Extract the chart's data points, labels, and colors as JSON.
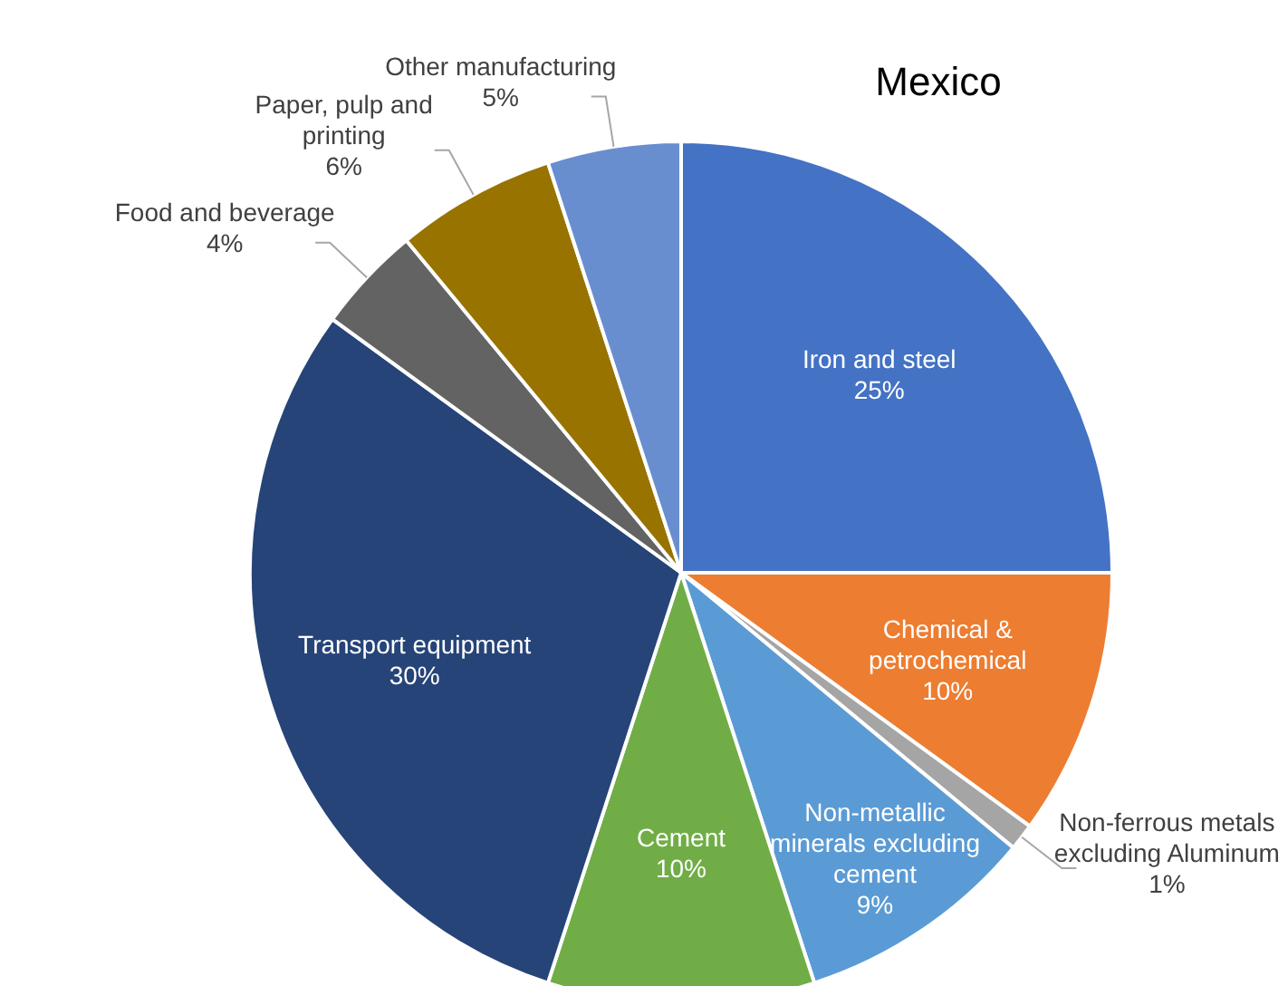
{
  "chart_data": {
    "type": "pie",
    "title": "Mexico",
    "categories": [
      "Iron and steel",
      "Chemical & petrochemical",
      "Non-ferrous metals excluding Aluminum",
      "Non-metallic minerals excluding cement",
      "Cement",
      "Transport equipment",
      "Food and beverage",
      "Paper, pulp and printing",
      "Other manufacturing"
    ],
    "values": [
      25,
      10,
      1,
      9,
      10,
      30,
      4,
      6,
      5
    ],
    "value_labels": [
      "25%",
      "10%",
      "1%",
      "9%",
      "10%",
      "30%",
      "4%",
      "6%",
      "5%"
    ],
    "colors": [
      "#4472c4",
      "#ed7d31",
      "#a5a5a5",
      "#5b9bd5",
      "#70ad47",
      "#264478",
      "#636363",
      "#997300",
      "#698ed0"
    ],
    "legend": false
  }
}
